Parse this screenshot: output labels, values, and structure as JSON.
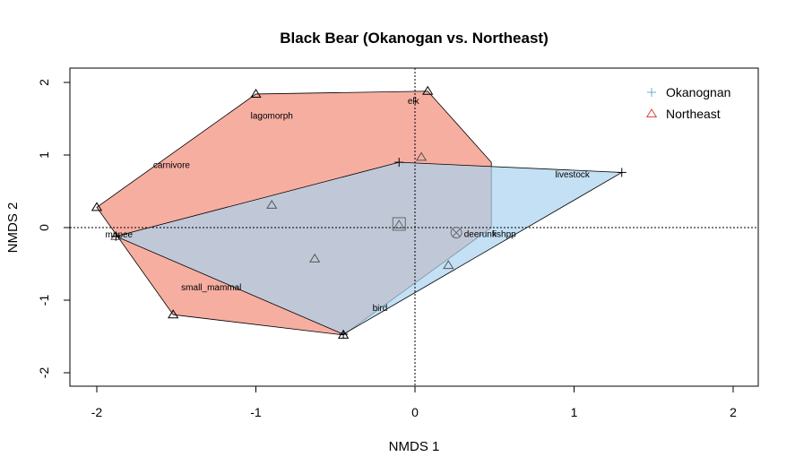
{
  "chart_data": {
    "type": "scatter",
    "title": "Black Bear (Okanogan vs. Northeast)",
    "xlabel": "NMDS 1",
    "ylabel": "NMDS 2",
    "xlim": [
      -2.2,
      2.15
    ],
    "ylim": [
      -2.2,
      2.2
    ],
    "xticks": [
      -2,
      -1,
      0,
      1,
      2
    ],
    "yticks": [
      -2,
      -1,
      0,
      1,
      2
    ],
    "reference_lines": {
      "x": 0,
      "y": 0
    },
    "legend": {
      "placement": "top-right",
      "entries": [
        {
          "label": "Okanognan",
          "symbol": "+",
          "color": "#6baed6"
        },
        {
          "label": "Northeast",
          "symbol": "triangle",
          "color": "#d9473a"
        }
      ]
    },
    "series": [
      {
        "name": "Northeast",
        "hull_color": "#f4a090",
        "marker": "triangle",
        "hull": [
          [
            -2.0,
            0.28
          ],
          [
            -1.0,
            1.84
          ],
          [
            0.08,
            1.88
          ],
          [
            0.48,
            0.9
          ],
          [
            0.48,
            0.0
          ],
          [
            -0.45,
            -1.48
          ],
          [
            -1.52,
            -1.2
          ],
          [
            -2.0,
            0.28
          ]
        ],
        "points": [
          [
            -2.0,
            0.28
          ],
          [
            -1.0,
            1.84
          ],
          [
            0.08,
            1.88
          ],
          [
            0.04,
            0.97
          ],
          [
            -0.9,
            0.31
          ],
          [
            -0.63,
            -0.43
          ],
          [
            0.21,
            -0.52
          ],
          [
            -1.52,
            -1.2
          ],
          [
            -0.45,
            -1.48
          ],
          [
            -1.88,
            -0.12
          ]
        ]
      },
      {
        "name": "Okanognan",
        "hull_color": "#a9d3f0",
        "marker": "plus",
        "hull": [
          [
            -1.88,
            -0.12
          ],
          [
            -0.1,
            0.9
          ],
          [
            1.3,
            0.76
          ],
          [
            -0.45,
            -1.47
          ],
          [
            -1.88,
            -0.12
          ]
        ],
        "points": [
          [
            -1.88,
            -0.12
          ],
          [
            -0.1,
            0.9
          ],
          [
            1.3,
            0.76
          ],
          [
            -0.45,
            -1.47
          ]
        ]
      }
    ],
    "centroids": [
      {
        "x": -0.1,
        "y": 0.05,
        "marker": "square"
      },
      {
        "x": 0.26,
        "y": -0.07,
        "marker": "circle-x"
      }
    ],
    "species_labels": [
      {
        "text": "elk",
        "x": -0.01,
        "y": 1.74
      },
      {
        "text": "lagomorph",
        "x": -0.9,
        "y": 1.54
      },
      {
        "text": "carnivore",
        "x": -1.53,
        "y": 0.86
      },
      {
        "text": "livestock",
        "x": 0.99,
        "y": 0.73
      },
      {
        "text": "deerunk",
        "x": 0.41,
        "y": -0.09
      },
      {
        "text": "fishpp",
        "x": 0.56,
        "y": -0.09
      },
      {
        "text": "mnpee",
        "x": -1.86,
        "y": -0.1
      },
      {
        "text": "small_mammal",
        "x": -1.28,
        "y": -0.83
      },
      {
        "text": "bird",
        "x": -0.22,
        "y": -1.11
      }
    ]
  }
}
